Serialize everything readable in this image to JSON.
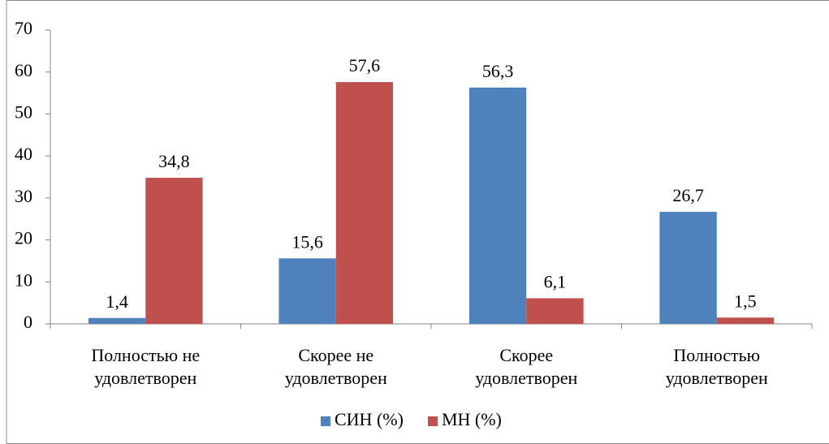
{
  "chart_data": {
    "type": "bar",
    "categories": [
      "Полностью не\nудовлетворен",
      "Скорее не\nудовлетворен",
      "Скорее\nудовлетворен",
      "Полностью\nудовлетворен"
    ],
    "series": [
      {
        "name": "СИН (%)",
        "color": "#4f81bd",
        "values": [
          1.4,
          15.6,
          56.3,
          26.7
        ],
        "value_labels": [
          "1,4",
          "15,6",
          "56,3",
          "26,7"
        ]
      },
      {
        "name": "МН (%)",
        "color": "#c0504d",
        "values": [
          34.8,
          57.6,
          6.1,
          1.5
        ],
        "value_labels": [
          "34,8",
          "57,6",
          "6,1",
          "1,5"
        ]
      }
    ],
    "ylim": [
      0,
      70
    ],
    "yticks": [
      0,
      10,
      20,
      30,
      40,
      50,
      60,
      70
    ],
    "grid": false,
    "legend": "bottom"
  }
}
